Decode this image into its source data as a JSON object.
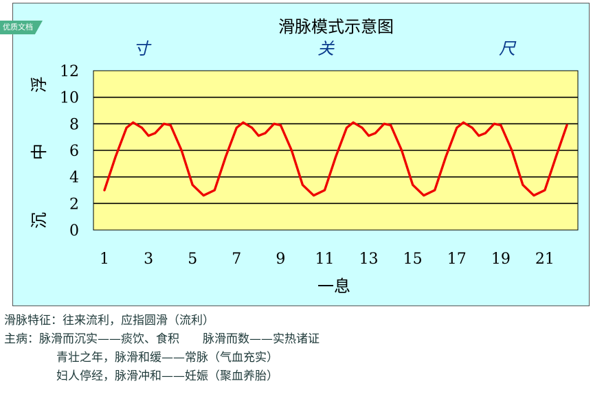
{
  "watermark": "优质文档",
  "chart_data": {
    "type": "line",
    "title": "滑脉模式示意图",
    "xlabel": "一息",
    "ylabel": "",
    "top_labels": [
      "寸",
      "关",
      "尺"
    ],
    "side_labels": [
      "浮",
      "中",
      "沉"
    ],
    "ylim": [
      0,
      12
    ],
    "yticks": [
      0,
      2,
      4,
      6,
      8,
      10,
      12
    ],
    "xlim": [
      0.5,
      22.5
    ],
    "xticks": [
      1,
      3,
      5,
      7,
      9,
      11,
      13,
      15,
      17,
      19,
      21
    ],
    "grid": true,
    "colors": {
      "background": "#ccffff",
      "plot_area": "#ffff99",
      "line": "#ee0000",
      "grid": "#000000",
      "axis_text": "#0a3b8c"
    },
    "series": [
      {
        "values": [
          {
            "x": 1.0,
            "y": 3.0
          },
          {
            "x": 1.5,
            "y": 5.5
          },
          {
            "x": 2.0,
            "y": 7.7
          },
          {
            "x": 2.3,
            "y": 8.1
          },
          {
            "x": 2.7,
            "y": 7.7
          },
          {
            "x": 3.0,
            "y": 7.1
          },
          {
            "x": 3.3,
            "y": 7.3
          },
          {
            "x": 3.7,
            "y": 8.0
          },
          {
            "x": 4.0,
            "y": 7.9
          },
          {
            "x": 4.5,
            "y": 6.0
          },
          {
            "x": 5.0,
            "y": 3.4
          },
          {
            "x": 5.5,
            "y": 2.6
          },
          {
            "x": 6.0,
            "y": 3.0
          },
          {
            "x": 6.5,
            "y": 5.5
          },
          {
            "x": 7.0,
            "y": 7.7
          },
          {
            "x": 7.3,
            "y": 8.1
          },
          {
            "x": 7.7,
            "y": 7.7
          },
          {
            "x": 8.0,
            "y": 7.1
          },
          {
            "x": 8.3,
            "y": 7.3
          },
          {
            "x": 8.7,
            "y": 8.0
          },
          {
            "x": 9.0,
            "y": 7.9
          },
          {
            "x": 9.5,
            "y": 6.0
          },
          {
            "x": 10.0,
            "y": 3.4
          },
          {
            "x": 10.5,
            "y": 2.6
          },
          {
            "x": 11.0,
            "y": 3.0
          },
          {
            "x": 11.5,
            "y": 5.5
          },
          {
            "x": 12.0,
            "y": 7.7
          },
          {
            "x": 12.3,
            "y": 8.1
          },
          {
            "x": 12.7,
            "y": 7.7
          },
          {
            "x": 13.0,
            "y": 7.1
          },
          {
            "x": 13.3,
            "y": 7.3
          },
          {
            "x": 13.7,
            "y": 8.0
          },
          {
            "x": 14.0,
            "y": 7.9
          },
          {
            "x": 14.5,
            "y": 6.0
          },
          {
            "x": 15.0,
            "y": 3.4
          },
          {
            "x": 15.5,
            "y": 2.6
          },
          {
            "x": 16.0,
            "y": 3.0
          },
          {
            "x": 16.5,
            "y": 5.5
          },
          {
            "x": 17.0,
            "y": 7.7
          },
          {
            "x": 17.3,
            "y": 8.1
          },
          {
            "x": 17.7,
            "y": 7.7
          },
          {
            "x": 18.0,
            "y": 7.1
          },
          {
            "x": 18.3,
            "y": 7.3
          },
          {
            "x": 18.7,
            "y": 8.0
          },
          {
            "x": 19.0,
            "y": 7.9
          },
          {
            "x": 19.5,
            "y": 6.0
          },
          {
            "x": 20.0,
            "y": 3.4
          },
          {
            "x": 20.5,
            "y": 2.6
          },
          {
            "x": 21.0,
            "y": 3.0
          },
          {
            "x": 21.5,
            "y": 5.5
          },
          {
            "x": 22.0,
            "y": 7.9
          }
        ]
      }
    ]
  },
  "notes": {
    "feature_label": "滑脉特征：",
    "feature_text": "往来流利，应指圆滑（流利）",
    "main_label": "主病：",
    "main_1a": "脉滑而沉实——痰饮、食积",
    "main_1b": "脉滑而数——实热诸证",
    "main_2": "青壮之年，脉滑和缓——常脉（气血充实）",
    "main_3": "妇人停经，脉滑冲和——妊娠（聚血养胎）"
  }
}
